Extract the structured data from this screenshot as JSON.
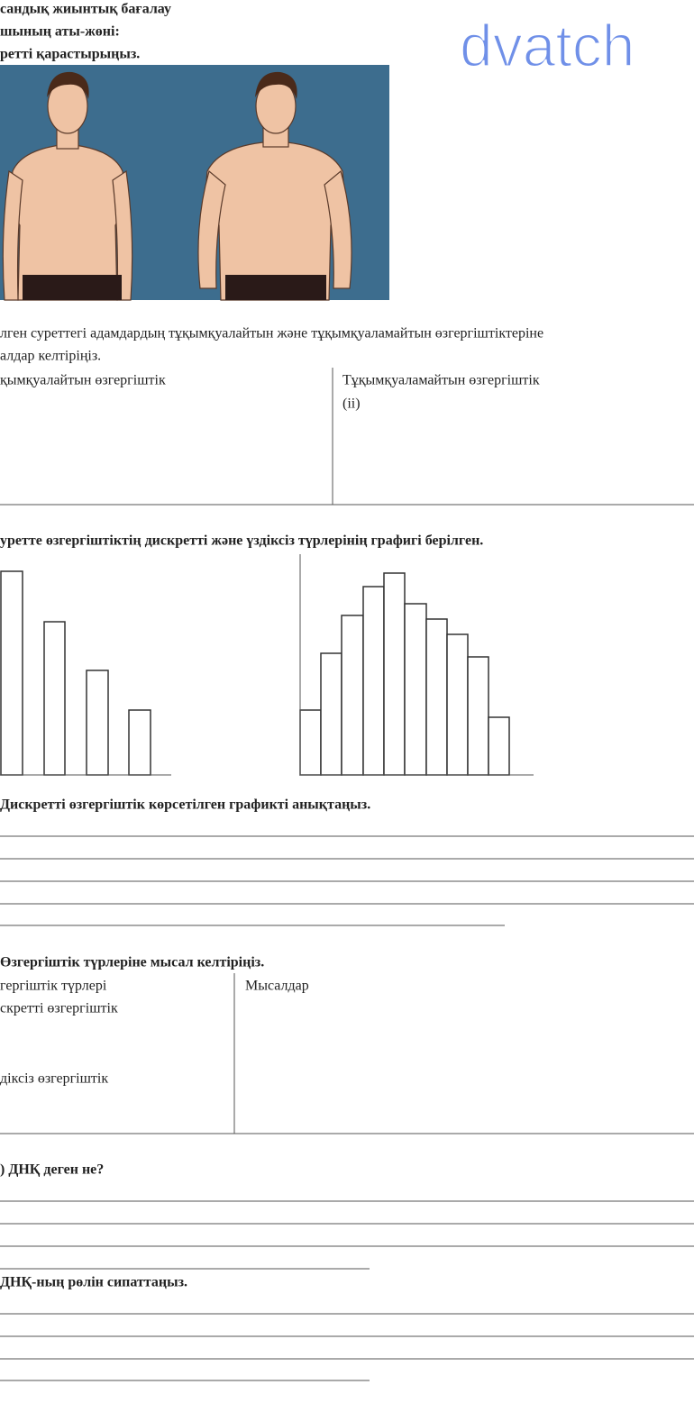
{
  "header": {
    "title": "сандық жиынтық бағалау",
    "student_name": "шының аты-жөні:",
    "instruction": "ретті қарастырыңыз."
  },
  "watermark": "dvatch",
  "task1": {
    "text_line1": "лген суреттегі адамдардың тұқымқуалайтын және тұқымқуаламайтын өзгергіштіктеріне",
    "text_line2": "алдар келтіріңіз.",
    "table": {
      "col1": "қымқуалайтын өзгергіштік",
      "col2": "Тұқымқуаламайтын өзгергіштік",
      "col2_item": "(ii)"
    }
  },
  "task2": {
    "heading": "уретте өзгергіштіктің дискретті және үздіксіз түрлерінің графигі берілген.",
    "question_a": "Дискретті өзгергіштік көрсетілген графикті анықтаңыз.",
    "question_b": "Өзгергіштік түрлеріне мысал келтіріңіз.",
    "table": {
      "col1": "гергіштік түрлері",
      "col2": "Мысалдар",
      "row1": "скретті өзгергіштік",
      "row2": "діксіз өзгергіштік"
    }
  },
  "task3": {
    "question_a": ") ДНҚ деген не?",
    "question_b": "ДНҚ-ның рөлін сипаттаңыз."
  }
}
